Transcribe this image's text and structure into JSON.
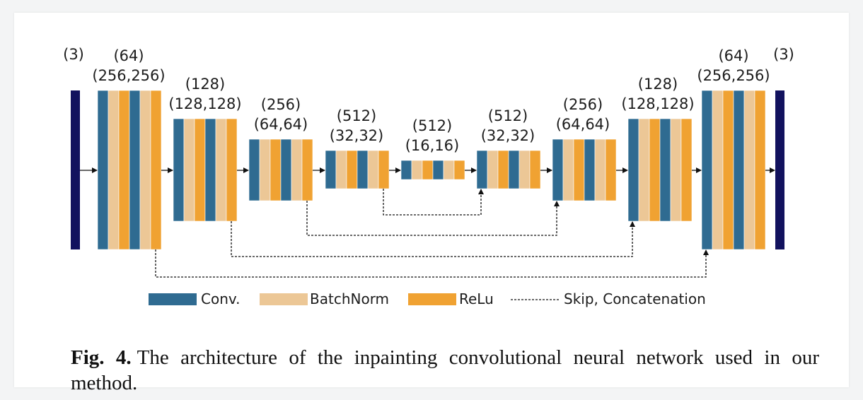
{
  "diagram": {
    "colors": {
      "conv": "#2f6b91",
      "batchnorm": "#ecc796",
      "relu": "#f0a232",
      "io": "#12125e",
      "arrow": "#111111"
    },
    "stages": [
      {
        "channels": "(3)",
        "size": "",
        "type": "io"
      },
      {
        "channels": "(64)",
        "size": "(256,256)",
        "type": "encoder",
        "pattern": [
          "conv",
          "batchnorm",
          "relu",
          "conv",
          "batchnorm",
          "relu"
        ]
      },
      {
        "channels": "(128)",
        "size": "(128,128)",
        "type": "encoder",
        "pattern": [
          "conv",
          "batchnorm",
          "relu",
          "conv",
          "batchnorm",
          "relu"
        ]
      },
      {
        "channels": "(256)",
        "size": "(64,64)",
        "type": "encoder",
        "pattern": [
          "conv",
          "batchnorm",
          "relu",
          "conv",
          "batchnorm",
          "relu"
        ]
      },
      {
        "channels": "(512)",
        "size": "(32,32)",
        "type": "encoder",
        "pattern": [
          "conv",
          "batchnorm",
          "relu",
          "conv",
          "batchnorm",
          "relu"
        ]
      },
      {
        "channels": "(512)",
        "size": "(16,16)",
        "type": "bottleneck",
        "pattern": [
          "conv",
          "batchnorm",
          "relu",
          "conv",
          "batchnorm",
          "relu"
        ]
      },
      {
        "channels": "(512)",
        "size": "(32,32)",
        "type": "decoder",
        "pattern": [
          "conv",
          "batchnorm",
          "relu",
          "conv",
          "batchnorm",
          "relu"
        ]
      },
      {
        "channels": "(256)",
        "size": "(64,64)",
        "type": "decoder",
        "pattern": [
          "conv",
          "batchnorm",
          "relu",
          "conv",
          "batchnorm",
          "relu"
        ]
      },
      {
        "channels": "(128)",
        "size": "(128,128)",
        "type": "decoder",
        "pattern": [
          "conv",
          "batchnorm",
          "relu",
          "conv",
          "batchnorm",
          "relu"
        ]
      },
      {
        "channels": "(64)",
        "size": "(256,256)",
        "type": "decoder",
        "pattern": [
          "conv",
          "batchnorm",
          "relu",
          "conv",
          "batchnorm",
          "relu"
        ]
      },
      {
        "channels": "(3)",
        "size": "",
        "type": "io"
      }
    ],
    "skips": [
      [
        4,
        6
      ],
      [
        3,
        7
      ],
      [
        2,
        8
      ],
      [
        1,
        9
      ]
    ],
    "legend": {
      "conv": "Conv.",
      "batchnorm": "BatchNorm",
      "relu": "ReLu",
      "skip": "Skip, Concatenation"
    }
  },
  "caption": {
    "fig": "Fig. 4.",
    "text": "The architecture of the inpainting convolutional neural network used in our method."
  }
}
